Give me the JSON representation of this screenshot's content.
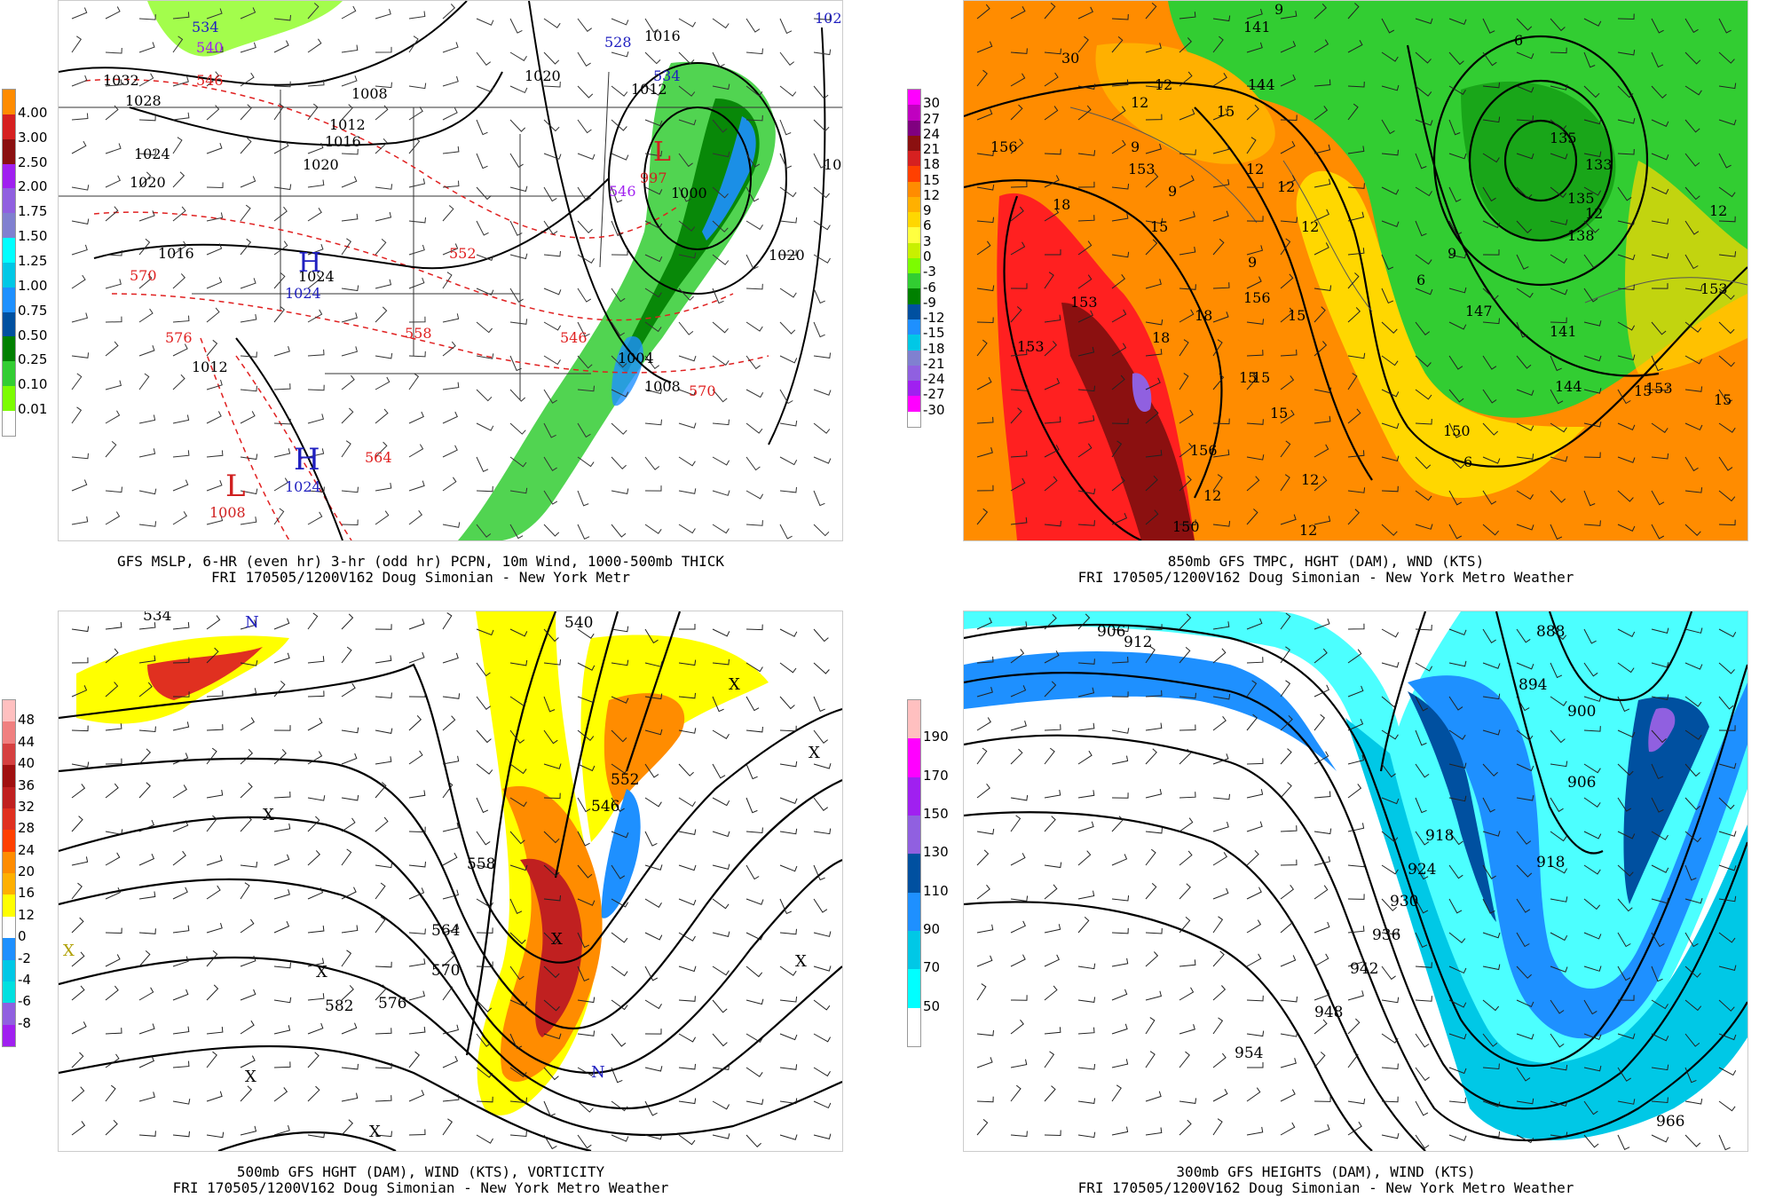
{
  "panels": [
    {
      "id": "mslp",
      "title": "GFS MSLP, 6-HR (even hr) 3-hr (odd hr) PCPN, 10m Wind, 1000-500mb THICK",
      "subtitle": "FRI 170505/1200V162 Doug Simonian - New York Metr",
      "legend": {
        "labels": [
          "4.00",
          "3.00",
          "2.50",
          "2.00",
          "1.75",
          "1.50",
          "1.25",
          "1.00",
          "0.75",
          "0.50",
          "0.25",
          "0.10",
          "0.01"
        ],
        "colors": [
          "#ff8c00",
          "#d62020",
          "#8b1010",
          "#a020f0",
          "#9060e0",
          "#8080d0",
          "#00ffff",
          "#00c8e6",
          "#1e90ff",
          "#0050a0",
          "#008000",
          "#32cd32",
          "#7cfc00",
          "#ffffff"
        ]
      },
      "map_labels": [
        "534",
        "540",
        "546",
        "1032",
        "1028",
        "1024",
        "1020",
        "1016",
        "1008",
        "1012",
        "1016",
        "1020",
        "1020",
        "528",
        "1016",
        "534",
        "1012",
        "102",
        "10",
        "1000",
        "546",
        "552",
        "558",
        "564",
        "570",
        "570",
        "576",
        "1012",
        "1004",
        "1008",
        "1024",
        "1024",
        "1008",
        "1024",
        "1020",
        "570",
        "546"
      ],
      "pressure_centers": [
        {
          "symbol": "H",
          "value": "1024",
          "color": "#2020c0"
        },
        {
          "symbol": "H",
          "value": "1024",
          "color": "#2020c0"
        },
        {
          "symbol": "L",
          "value": "1008",
          "color": "#d02020"
        },
        {
          "symbol": "L",
          "value": "997",
          "color": "#d02020"
        }
      ]
    },
    {
      "id": "t850",
      "title": "850mb GFS TMPC, HGHT (DAM), WND (KTS)",
      "subtitle": "FRI 170505/1200V162 Doug Simonian - New York Metro Weather",
      "legend": {
        "labels": [
          "30",
          "27",
          "24",
          "21",
          "18",
          "15",
          "12",
          "9",
          "6",
          "3",
          "0",
          "-3",
          "-6",
          "-9",
          "-12",
          "-15",
          "-18",
          "-21",
          "-24",
          "-27",
          "-30"
        ],
        "colors": [
          "#ff00ff",
          "#c000c0",
          "#800080",
          "#8b1010",
          "#d62020",
          "#ff4000",
          "#ff8c00",
          "#ffb000",
          "#ffd700",
          "#ffff40",
          "#c8f000",
          "#7cfc00",
          "#32cd32",
          "#008000",
          "#0050a0",
          "#1e90ff",
          "#00c8e6",
          "#8080d0",
          "#9060e0",
          "#a020f0",
          "#ff00ff",
          "#ffffff"
        ]
      },
      "map_labels": [
        "30",
        "141",
        "144",
        "9",
        "6",
        "156",
        "12",
        "12",
        "15",
        "153",
        "9",
        "9",
        "12",
        "12",
        "15",
        "18",
        "18",
        "15",
        "9",
        "12",
        "153",
        "156",
        "15",
        "12",
        "9",
        "6",
        "147",
        "141",
        "144",
        "18",
        "153",
        "15",
        "15",
        "150",
        "6",
        "15",
        "156",
        "12",
        "12",
        "150",
        "12",
        "138",
        "135",
        "133",
        "135",
        "12",
        "153",
        "15",
        "153"
      ]
    },
    {
      "id": "h500",
      "title": "500mb GFS HGHT (DAM), WIND (KTS), VORTICITY",
      "subtitle": "FRI 170505/1200V162 Doug Simonian - New York Metro Weather",
      "legend": {
        "labels": [
          "48",
          "44",
          "40",
          "36",
          "32",
          "28",
          "24",
          "20",
          "16",
          "12",
          "0",
          "-2",
          "-4",
          "-6",
          "-8"
        ],
        "colors": [
          "#ffc0c0",
          "#f08080",
          "#d64040",
          "#a01010",
          "#c02020",
          "#e03020",
          "#ff4000",
          "#ff8c00",
          "#ffb000",
          "#ffff00",
          "#ffffff",
          "#1e90ff",
          "#00c8e6",
          "#00e0e0",
          "#9060e0",
          "#a020f0"
        ]
      },
      "map_labels": [
        "534",
        "540",
        "552",
        "558",
        "564",
        "570",
        "576",
        "582",
        "546",
        "552"
      ],
      "extrema": [
        "X",
        "X",
        "X",
        "X",
        "X",
        "X",
        "X",
        "N",
        "N",
        "X",
        "X"
      ]
    },
    {
      "id": "h300",
      "title": "300mb GFS HEIGHTS (DAM), WIND (KTS)",
      "subtitle": "FRI 170505/1200V162 Doug Simonian - New York Metro Weather",
      "legend": {
        "labels": [
          "190",
          "170",
          "150",
          "130",
          "110",
          "90",
          "70",
          "50"
        ],
        "colors": [
          "#ffc0c0",
          "#ff00ff",
          "#a020f0",
          "#9060e0",
          "#0050a0",
          "#1e90ff",
          "#00c8e6",
          "#00ffff",
          "#ffffff"
        ]
      },
      "map_labels": [
        "906",
        "912",
        "888",
        "894",
        "900",
        "906",
        "918",
        "924",
        "930",
        "936",
        "942",
        "948",
        "954",
        "966",
        "918"
      ]
    }
  ]
}
